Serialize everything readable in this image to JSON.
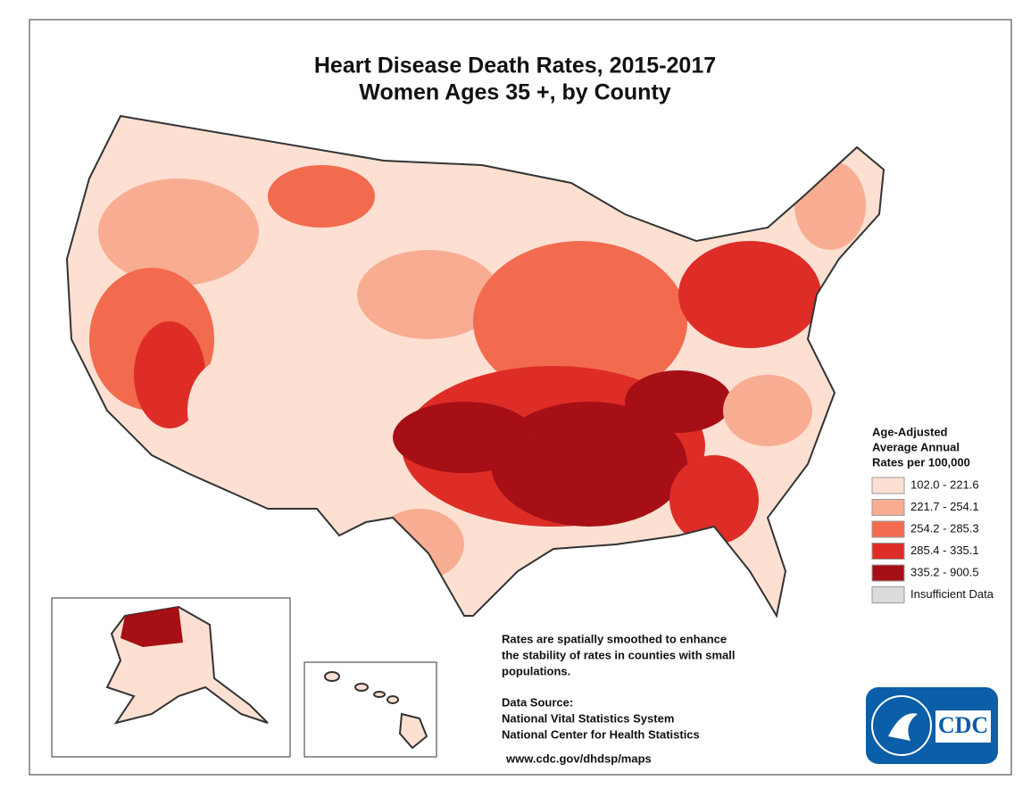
{
  "title": [
    "Heart Disease Death Rates, 2015-2017",
    "Women Ages 35 +, by County"
  ],
  "legend": {
    "title": [
      "Age-Adjusted",
      "Average Annual",
      "Rates per 100,000"
    ],
    "items": [
      {
        "label": "102.0 - 221.6",
        "color": "#fde0d2"
      },
      {
        "label": "221.7 - 254.1",
        "color": "#f8ad93"
      },
      {
        "label": "254.2 - 285.3",
        "color": "#f26b4f"
      },
      {
        "label": "285.4 - 335.1",
        "color": "#de2d26"
      },
      {
        "label": "335.2 - 900.5",
        "color": "#a50f15"
      },
      {
        "label": "Insufficient Data",
        "color": "#dcdcdc"
      }
    ]
  },
  "note": [
    "Rates are spatially smoothed to enhance",
    "the stability of rates in counties with small",
    "populations."
  ],
  "source": [
    "Data Source:",
    "National Vital Statistics System",
    "National Center for Health Statistics"
  ],
  "url": "www.cdc.gov/dhdsp/maps",
  "logo": "CDC"
}
